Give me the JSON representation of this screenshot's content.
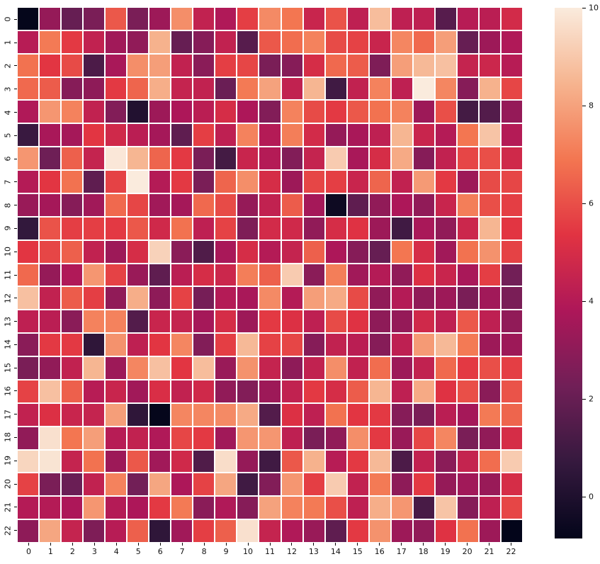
{
  "figure": {
    "background": "#ffffff",
    "grid_line_color": "#ffffff",
    "tick_color": "#000000"
  },
  "chart_data": {
    "type": "heatmap",
    "title": "",
    "xlabel": "",
    "ylabel": "",
    "x_tick_labels": [
      "0",
      "1",
      "2",
      "3",
      "4",
      "5",
      "6",
      "7",
      "8",
      "9",
      "10",
      "11",
      "12",
      "13",
      "14",
      "15",
      "16",
      "17",
      "18",
      "19",
      "20",
      "21",
      "22"
    ],
    "y_tick_labels": [
      "0",
      "1",
      "2",
      "3",
      "4",
      "5",
      "6",
      "7",
      "8",
      "9",
      "10",
      "11",
      "12",
      "13",
      "14",
      "15",
      "16",
      "17",
      "18",
      "19",
      "20",
      "21",
      "22"
    ],
    "vmin": -0.85,
    "vmax": 10,
    "colormap": {
      "name": "rocket",
      "anchors": [
        "#03051A",
        "#35193E",
        "#701F57",
        "#AD1759",
        "#E13342",
        "#F37651",
        "#F6B48F",
        "#FAEBDD"
      ]
    },
    "colorbar": {
      "ticks": [
        10,
        8,
        6,
        4,
        2,
        0
      ],
      "tick_labels": [
        "10",
        "8",
        "6",
        "4",
        "2",
        "0"
      ],
      "position": "right"
    },
    "values": [
      [
        -0.8,
        3.2,
        2.0,
        2.5,
        6.2,
        2.5,
        3.4,
        7.5,
        4.4,
        3.9,
        5.6,
        7.4,
        6.9,
        4.6,
        6.1,
        4.3,
        8.7,
        4.3,
        4.3,
        1.6,
        4.1,
        4.2,
        4.9
      ],
      [
        4.1,
        7.0,
        5.5,
        4.4,
        3.5,
        3.1,
        8.4,
        2.0,
        2.8,
        4.4,
        1.6,
        6.2,
        6.7,
        7.2,
        5.9,
        5.7,
        4.6,
        7.3,
        6.6,
        7.9,
        2.0,
        3.4,
        3.9
      ],
      [
        6.8,
        5.4,
        5.9,
        1.3,
        3.7,
        7.5,
        7.9,
        4.4,
        2.9,
        5.6,
        5.8,
        2.5,
        2.8,
        5.0,
        6.6,
        6.3,
        2.6,
        7.9,
        8.6,
        8.8,
        4.5,
        4.7,
        4.1
      ],
      [
        6.6,
        6.3,
        2.8,
        3.0,
        5.5,
        6.5,
        8.3,
        4.5,
        4.4,
        2.1,
        7.0,
        8.0,
        4.4,
        8.5,
        1.0,
        4.4,
        7.2,
        4.3,
        10.0,
        7.3,
        2.8,
        8.4,
        5.8
      ],
      [
        3.9,
        7.7,
        7.2,
        4.4,
        2.7,
        0.1,
        3.4,
        3.8,
        4.2,
        5.0,
        3.8,
        2.7,
        7.2,
        5.9,
        5.5,
        6.2,
        6.8,
        7.2,
        3.4,
        6.0,
        1.1,
        1.5,
        3.2
      ],
      [
        0.8,
        3.7,
        3.6,
        5.4,
        4.8,
        4.2,
        3.6,
        1.8,
        5.6,
        4.3,
        7.2,
        4.0,
        7.1,
        4.9,
        3.2,
        3.7,
        4.3,
        8.5,
        4.6,
        4.0,
        6.9,
        8.9,
        4.0
      ],
      [
        7.7,
        2.2,
        6.4,
        4.5,
        9.9,
        8.5,
        6.5,
        5.5,
        2.5,
        1.1,
        4.6,
        4.0,
        2.7,
        4.5,
        9.1,
        3.7,
        5.0,
        8.2,
        2.8,
        4.4,
        5.8,
        6.0,
        4.8
      ],
      [
        4.0,
        5.4,
        6.8,
        1.8,
        5.7,
        10.0,
        4.0,
        5.5,
        2.5,
        6.5,
        7.5,
        5.0,
        3.4,
        5.8,
        5.6,
        4.6,
        6.5,
        4.4,
        7.8,
        5.5,
        3.4,
        5.9,
        5.8
      ],
      [
        3.3,
        3.6,
        2.8,
        3.5,
        6.6,
        5.8,
        3.5,
        3.6,
        6.6,
        5.9,
        3.2,
        4.4,
        6.3,
        3.6,
        -0.5,
        1.8,
        3.1,
        3.8,
        3.1,
        4.6,
        7.1,
        6.0,
        5.6
      ],
      [
        0.6,
        6.1,
        5.6,
        5.6,
        5.5,
        6.2,
        4.8,
        6.8,
        4.3,
        5.7,
        2.6,
        4.9,
        4.8,
        3.1,
        5.0,
        5.3,
        3.4,
        1.0,
        3.7,
        3.1,
        4.7,
        8.5,
        5.4
      ],
      [
        5.4,
        5.8,
        6.4,
        4.4,
        3.4,
        5.0,
        9.3,
        2.9,
        1.4,
        3.7,
        5.0,
        4.0,
        4.5,
        6.4,
        3.8,
        2.8,
        2.0,
        6.9,
        5.0,
        3.5,
        6.8,
        7.6,
        5.7
      ],
      [
        6.6,
        3.2,
        3.9,
        7.7,
        5.7,
        3.3,
        1.8,
        4.2,
        5.0,
        4.7,
        7.1,
        6.4,
        9.1,
        2.9,
        7.1,
        3.5,
        4.0,
        3.1,
        5.2,
        4.6,
        3.7,
        5.6,
        2.3
      ],
      [
        8.8,
        4.4,
        6.3,
        5.6,
        3.1,
        8.3,
        3.0,
        5.7,
        2.4,
        4.0,
        3.7,
        7.4,
        4.0,
        7.9,
        8.2,
        5.9,
        3.1,
        4.0,
        3.1,
        3.4,
        2.5,
        3.5,
        2.5
      ],
      [
        4.3,
        4.2,
        2.9,
        7.2,
        7.2,
        1.5,
        4.6,
        4.5,
        3.6,
        5.0,
        3.4,
        5.5,
        5.2,
        4.3,
        5.9,
        5.3,
        3.0,
        3.2,
        4.8,
        4.3,
        6.2,
        4.3,
        3.1
      ],
      [
        2.9,
        5.5,
        5.5,
        0.5,
        7.6,
        4.3,
        5.4,
        7.3,
        2.7,
        5.6,
        8.6,
        5.7,
        5.8,
        2.8,
        4.4,
        4.2,
        2.8,
        4.3,
        7.8,
        8.6,
        7.0,
        3.4,
        3.4
      ],
      [
        2.5,
        3.1,
        4.4,
        8.5,
        3.4,
        7.3,
        8.8,
        5.4,
        8.7,
        3.3,
        7.6,
        4.5,
        3.0,
        4.4,
        7.5,
        4.4,
        6.7,
        3.4,
        4.4,
        6.6,
        5.5,
        6.0,
        5.6
      ],
      [
        5.7,
        8.8,
        6.4,
        4.1,
        4.6,
        3.5,
        5.1,
        4.4,
        4.8,
        3.1,
        2.7,
        3.4,
        4.4,
        5.5,
        5.0,
        6.3,
        8.5,
        4.3,
        8.2,
        5.3,
        6.0,
        2.9,
        6.1
      ],
      [
        4.4,
        5.2,
        4.6,
        4.5,
        7.9,
        0.5,
        -0.8,
        7.3,
        7.3,
        7.4,
        8.2,
        1.5,
        5.2,
        4.3,
        6.8,
        5.4,
        5.5,
        2.8,
        2.5,
        4.2,
        3.6,
        7.0,
        6.5
      ],
      [
        3.1,
        9.7,
        6.9,
        7.9,
        4.1,
        4.4,
        3.9,
        5.8,
        5.5,
        3.5,
        7.7,
        7.7,
        4.3,
        2.5,
        3.1,
        7.5,
        5.5,
        3.3,
        5.8,
        7.3,
        2.5,
        3.1,
        5.0
      ],
      [
        9.4,
        9.8,
        4.5,
        6.8,
        3.4,
        6.2,
        3.5,
        4.8,
        1.4,
        9.6,
        3.2,
        1.0,
        6.2,
        8.4,
        4.1,
        5.5,
        8.6,
        1.3,
        4.4,
        2.9,
        4.5,
        6.7,
        9.1
      ],
      [
        5.7,
        2.5,
        2.1,
        4.4,
        7.2,
        2.3,
        8.1,
        3.8,
        5.7,
        8.1,
        1.0,
        2.7,
        7.7,
        5.6,
        9.1,
        4.4,
        7.0,
        3.0,
        5.5,
        3.2,
        3.5,
        3.3,
        5.0
      ],
      [
        4.0,
        4.0,
        3.8,
        7.7,
        4.0,
        3.8,
        5.5,
        7.0,
        2.9,
        3.9,
        2.8,
        8.0,
        7.2,
        7.0,
        6.0,
        4.3,
        8.3,
        7.7,
        1.2,
        8.9,
        2.8,
        4.3,
        5.8
      ],
      [
        3.0,
        8.1,
        4.5,
        2.6,
        4.1,
        6.4,
        0.5,
        3.5,
        5.6,
        6.4,
        9.7,
        4.5,
        3.9,
        3.3,
        1.8,
        5.5,
        7.6,
        3.4,
        3.1,
        5.3,
        6.8,
        3.4,
        -0.85
      ]
    ]
  }
}
